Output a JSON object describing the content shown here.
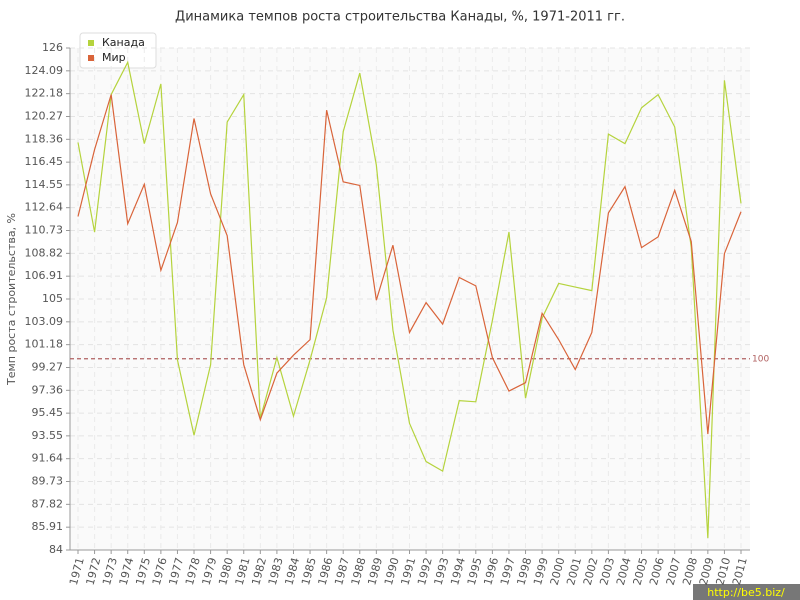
{
  "chart_data": {
    "type": "line",
    "title": "Динамика темпов роста строительства Канады, %, 1971-2011 гг.",
    "y_label": "Темп роста строительства, %",
    "categories": [
      "1971",
      "1972",
      "1973",
      "1974",
      "1975",
      "1976",
      "1977",
      "1978",
      "1979",
      "1980",
      "1981",
      "1982",
      "1983",
      "1984",
      "1985",
      "1986",
      "1987",
      "1988",
      "1989",
      "1990",
      "1991",
      "1992",
      "1993",
      "1994",
      "1995",
      "1996",
      "1997",
      "1998",
      "1999",
      "2000",
      "2001",
      "2002",
      "2003",
      "2004",
      "2005",
      "2006",
      "2007",
      "2008",
      "2009",
      "2010",
      "2011"
    ],
    "series": [
      {
        "name": "Канада",
        "color": "#b5d33d",
        "values": [
          118.1,
          110.6,
          122.1,
          124.8,
          118.0,
          123.0,
          99.9,
          93.6,
          99.5,
          119.8,
          122.1,
          95.0,
          100.1,
          95.2,
          99.9,
          105.1,
          119.0,
          123.9,
          116.2,
          102.4,
          94.6,
          91.4,
          90.6,
          96.5,
          96.4,
          103.2,
          110.6,
          96.7,
          103.4,
          106.3,
          106.0,
          105.7,
          118.8,
          118.0,
          121.0,
          122.1,
          119.4,
          109.3,
          85.0,
          123.3,
          113.0
        ]
      },
      {
        "name": "Мир",
        "color": "#d9643a",
        "values": [
          111.9,
          117.5,
          122.1,
          111.3,
          114.6,
          107.4,
          111.4,
          120.1,
          113.8,
          110.3,
          99.5,
          94.9,
          98.8,
          100.3,
          101.6,
          120.8,
          114.8,
          114.5,
          104.9,
          109.5,
          102.2,
          104.7,
          102.9,
          106.8,
          106.1,
          100.1,
          97.3,
          98.0,
          103.8,
          101.6,
          99.1,
          102.2,
          112.2,
          114.4,
          109.3,
          110.2,
          114.1,
          109.8,
          93.7,
          108.8,
          112.3
        ]
      }
    ],
    "ylim": [
      84,
      126
    ],
    "yticks": [
      84,
      85.91,
      87.82,
      89.73,
      91.64,
      93.55,
      95.45,
      97.36,
      99.27,
      101.18,
      103.09,
      105,
      106.91,
      108.82,
      110.73,
      112.64,
      114.55,
      116.45,
      118.36,
      120.27,
      122.18,
      124.09,
      126
    ],
    "grid": true,
    "reference_line": {
      "value": 100,
      "label": "100",
      "color": "#b06060"
    },
    "legend": "top-left"
  },
  "watermark": "http://be5.biz/"
}
